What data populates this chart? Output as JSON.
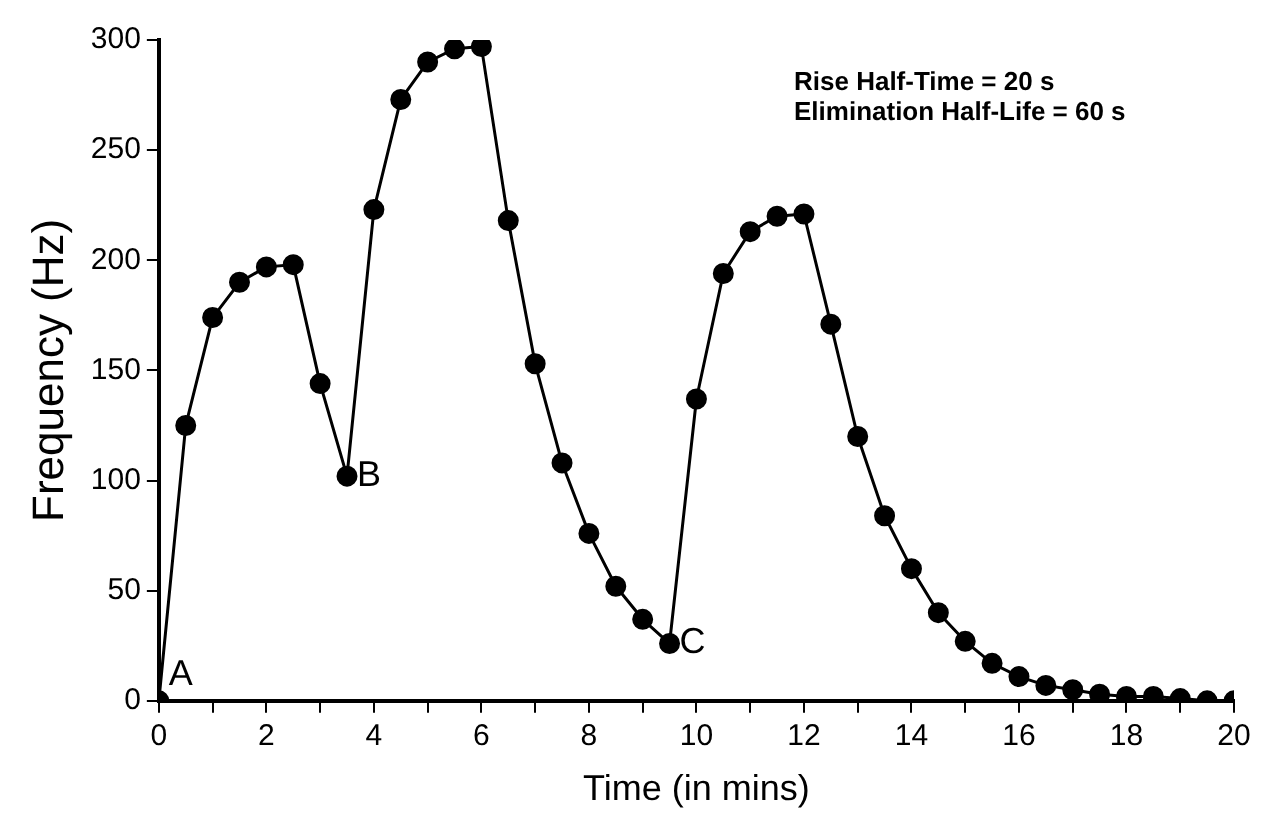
{
  "chart_data": {
    "type": "line",
    "xlabel": "Time (in mins)",
    "ylabel": "Frequency (Hz)",
    "x": [
      0,
      0.5,
      1,
      1.5,
      2,
      2.5,
      3,
      3.5,
      4,
      4.5,
      5,
      5.5,
      6,
      6.5,
      7,
      7.5,
      8,
      8.5,
      9,
      9.5,
      10,
      10.5,
      11,
      11.5,
      12,
      12.5,
      13,
      13.5,
      14,
      14.5,
      15,
      15.5,
      16,
      16.5,
      17,
      17.5,
      18,
      18.5,
      19,
      19.5,
      20
    ],
    "series": [
      {
        "color": "#000000",
        "values": [
          0,
          125,
          174,
          190,
          197,
          198,
          144,
          102,
          223,
          273,
          290,
          296,
          297,
          218,
          153,
          108,
          76,
          52,
          37,
          26,
          137,
          194,
          213,
          220,
          221,
          171,
          120,
          84,
          60,
          40,
          27,
          17,
          11,
          7,
          5,
          3,
          2,
          2,
          1,
          0,
          0
        ]
      }
    ],
    "xlim": [
      0,
      20
    ],
    "xticks": [
      0,
      {
        "value": 1,
        "label": null
      },
      2,
      {
        "value": 3,
        "label": null
      },
      4,
      {
        "value": 5,
        "label": null
      },
      6,
      {
        "value": 7,
        "label": null
      },
      8,
      {
        "value": 9,
        "label": null
      },
      10,
      {
        "value": 11,
        "label": null
      },
      12,
      {
        "value": 13,
        "label": null
      },
      14,
      {
        "value": 15,
        "label": null
      },
      16,
      {
        "value": 17,
        "label": null
      },
      18,
      {
        "value": 19,
        "label": null
      },
      20
    ],
    "ylim": [
      0,
      300
    ],
    "yticks": [
      0,
      50,
      100,
      150,
      200,
      250,
      300
    ],
    "grid": false,
    "legend": false,
    "marker": "circle",
    "line_style": "solid",
    "annotations": [
      "Rise Half-Time = 20 s",
      "Elimination Half-Life = 60 s",
      {
        "text": "A",
        "x": 0,
        "y": 0
      },
      {
        "text": "B",
        "x": 3.5,
        "y": 102
      },
      {
        "text": "C",
        "x": 9.5,
        "y": 26
      }
    ]
  }
}
